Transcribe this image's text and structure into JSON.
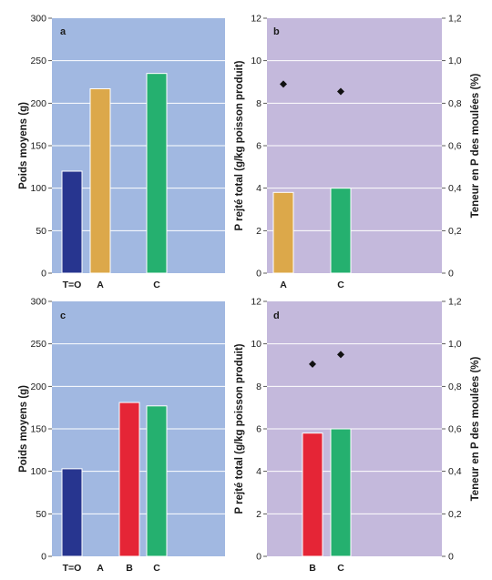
{
  "chart_data": [
    {
      "panel": "a",
      "type": "bar",
      "categories": [
        "T=O",
        "A",
        "",
        "C"
      ],
      "values": [
        120,
        217,
        null,
        235
      ],
      "colors": [
        "#27358f",
        "#dca84a",
        null,
        "#25b06f"
      ],
      "ylabel": "Poids moyens (g)",
      "ylim": [
        0,
        300
      ],
      "yticks": [
        "0",
        "50",
        "100",
        "150",
        "200",
        "250",
        "300"
      ],
      "background": "#a1b8e1"
    },
    {
      "panel": "b",
      "type": "bar",
      "categories": [
        "A",
        "C"
      ],
      "values": [
        3.8,
        4.0
      ],
      "colors": [
        "#dca84a",
        "#25b06f"
      ],
      "points": [
        0.89,
        0.855
      ],
      "ylabel": "P rejté total (g/kg poisson produit)",
      "ylabel_right": "Teneur en P des moulées (%)",
      "ylim": [
        0,
        12
      ],
      "ylim_right": [
        0,
        1.2
      ],
      "yticks": [
        "0",
        "2",
        "4",
        "6",
        "8",
        "10",
        "12"
      ],
      "yticks_right": [
        "0",
        "0,2",
        "0,4",
        "0,6",
        "0,8",
        "1,0",
        "1,2"
      ],
      "background": "#c4b9dc"
    },
    {
      "panel": "c",
      "type": "bar",
      "categories": [
        "T=O",
        "A",
        "B",
        "C"
      ],
      "values": [
        103,
        null,
        181,
        177
      ],
      "colors": [
        "#27358f",
        null,
        "#e52536",
        "#25b06f"
      ],
      "ylabel": "Poids moyens (g)",
      "ylim": [
        0,
        300
      ],
      "yticks": [
        "0",
        "50",
        "100",
        "150",
        "200",
        "250",
        "300"
      ],
      "background": "#a1b8e1"
    },
    {
      "panel": "d",
      "type": "bar",
      "categories": [
        "B",
        "C"
      ],
      "values": [
        5.8,
        6.0
      ],
      "colors": [
        "#e52536",
        "#25b06f"
      ],
      "points": [
        0.905,
        0.95
      ],
      "ylabel": "P rejté total (g/kg poisson produit)",
      "ylabel_right": "Teneur en P des moulées (%)",
      "ylim": [
        0,
        12
      ],
      "ylim_right": [
        0,
        1.2
      ],
      "yticks": [
        "0",
        "2",
        "4",
        "6",
        "8",
        "10",
        "12"
      ],
      "yticks_right": [
        "0",
        "0,2",
        "0,4",
        "0,6",
        "0,8",
        "1,0",
        "1,2"
      ],
      "background": "#c4b9dc"
    }
  ]
}
